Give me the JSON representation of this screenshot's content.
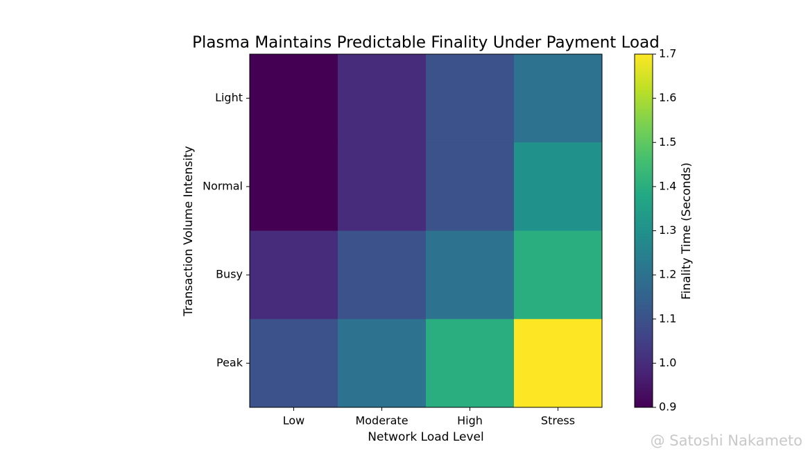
{
  "chart_data": {
    "type": "heatmap",
    "title": "Plasma Maintains Predictable Finality Under Payment Load",
    "x_label": "Network Load Level",
    "y_label": "Transaction Volume Intensity",
    "x_categories": [
      "Low",
      "Moderate",
      "High",
      "Stress"
    ],
    "y_categories": [
      "Light",
      "Normal",
      "Busy",
      "Peak"
    ],
    "values": [
      [
        0.9,
        1.0,
        1.1,
        1.2
      ],
      [
        0.9,
        1.0,
        1.1,
        1.3
      ],
      [
        1.0,
        1.1,
        1.2,
        1.4
      ],
      [
        1.1,
        1.2,
        1.4,
        1.7
      ]
    ],
    "colormap": "viridis",
    "colorbar_label": "Finality Time (Seconds)",
    "clim": [
      0.9,
      1.7
    ],
    "cticks": [
      0.9,
      {
        "value": 1.0,
        "label": "1.0"
      },
      1.1,
      1.2,
      1.3,
      1.4,
      1.5,
      1.6,
      1.7
    ]
  },
  "watermark": "@ Satoshi Nakameto"
}
